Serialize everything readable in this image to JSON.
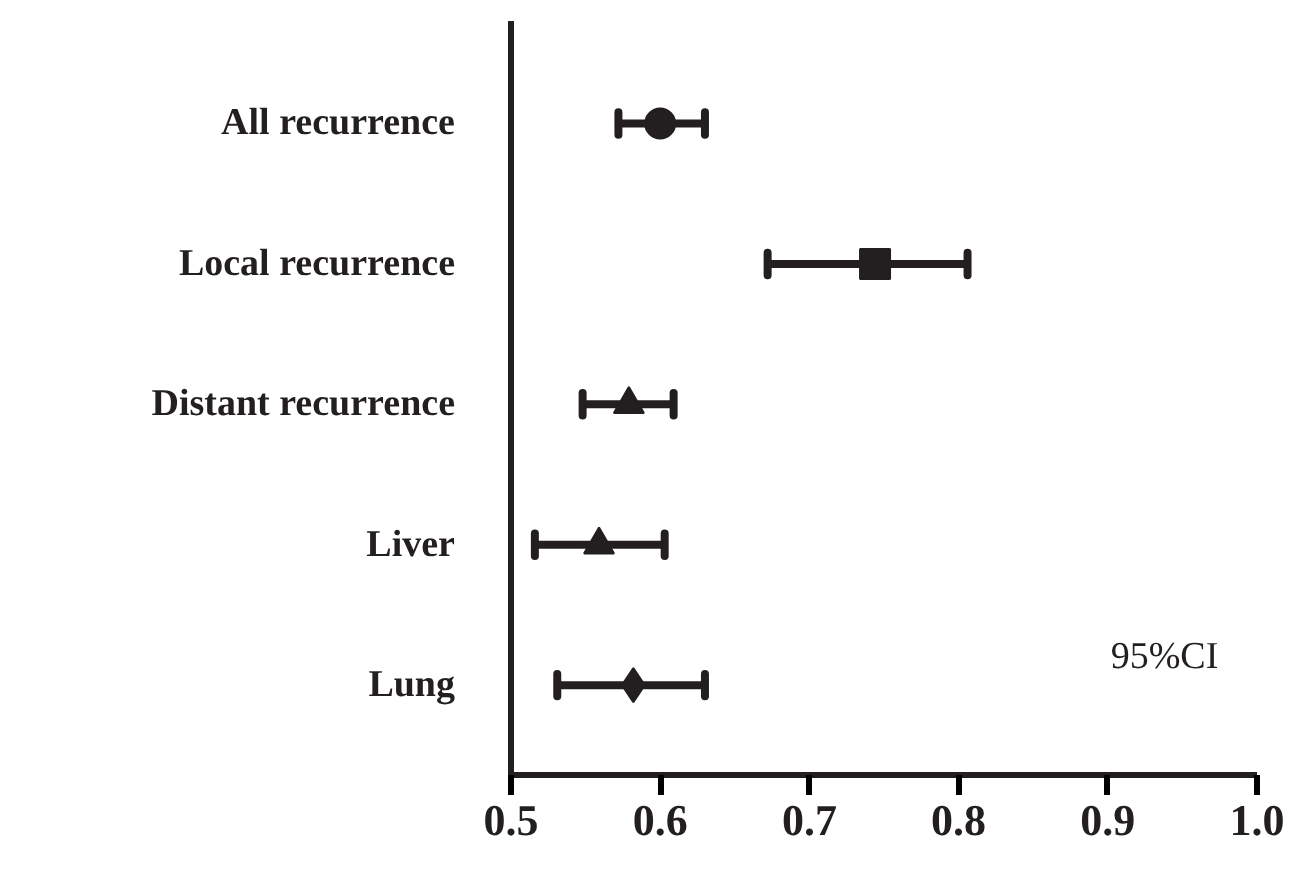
{
  "chart_data": {
    "type": "scatter",
    "orientation": "horizontal",
    "categories": [
      "All recurrence",
      "Local recurrence",
      "Distant recurrence",
      "Liver",
      "Lung"
    ],
    "series": [
      {
        "color": "#231f20",
        "marker": "circle",
        "values": [
          0.6,
          null,
          null,
          null,
          null
        ],
        "errors": [
          [
            0.572,
            0.63
          ],
          null,
          null,
          null,
          null
        ]
      },
      {
        "color": "#231f20",
        "marker": "square",
        "values": [
          null,
          0.744,
          null,
          null,
          null
        ],
        "errors": [
          null,
          [
            0.672,
            0.806
          ],
          null,
          null,
          null
        ]
      },
      {
        "color": "#231f20",
        "marker": "triangle",
        "values": [
          null,
          null,
          0.579,
          null,
          null
        ],
        "errors": [
          null,
          null,
          [
            0.548,
            0.609
          ],
          null,
          null
        ]
      },
      {
        "color": "#231f20",
        "marker": "triangle",
        "values": [
          null,
          null,
          null,
          0.559,
          null
        ],
        "errors": [
          null,
          null,
          null,
          [
            0.516,
            0.603
          ],
          null
        ]
      },
      {
        "color": "#231f20",
        "marker": "diamond",
        "values": [
          null,
          null,
          null,
          null,
          0.582
        ],
        "errors": [
          null,
          null,
          null,
          null,
          [
            0.531,
            0.63
          ]
        ]
      }
    ],
    "xlim": [
      0.5,
      1.0
    ],
    "xticks": [
      0.5,
      0.6,
      0.7,
      0.8,
      0.9,
      {
        "value": 1.0,
        "label": "1.0"
      }
    ],
    "grid": false,
    "annotations": [
      "95%CI"
    ]
  }
}
